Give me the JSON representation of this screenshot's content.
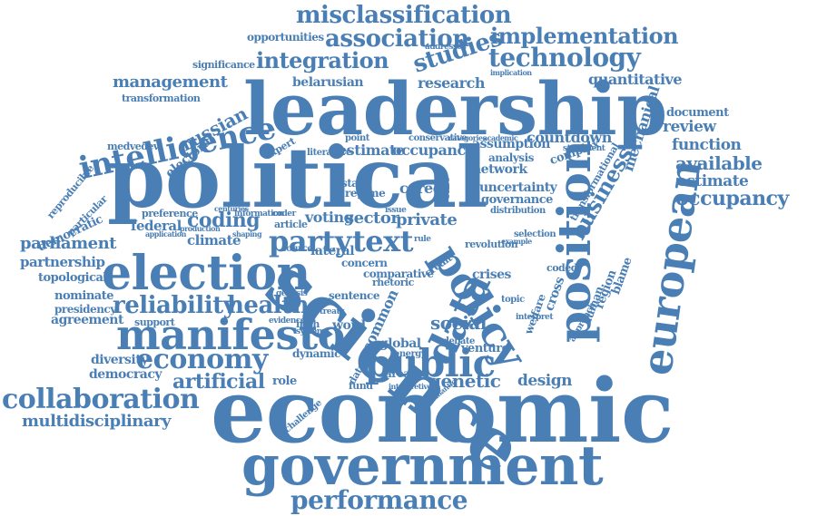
{
  "colors": {
    "word": "#4a7fb5",
    "background": "#ffffff"
  },
  "words": [
    "misclassification",
    "opportunities",
    "association",
    "implementation",
    "integration",
    "technology",
    "studies",
    "significance",
    "management",
    "belarusian",
    "research",
    "quantitative",
    "transformation",
    "leadership",
    "intelligence",
    "russian",
    "medvedev",
    "electoral",
    "expert",
    "political",
    "science",
    "policy",
    "position",
    "european",
    "reproducible",
    "particular",
    "democratic",
    "preference",
    "coding",
    "federal",
    "climate",
    "parliament",
    "partnership",
    "election",
    "party",
    "text",
    "topological",
    "data",
    "reliability",
    "health",
    "nominate",
    "presidency",
    "agreement",
    "manifesto",
    "economy",
    "diversity",
    "democracy",
    "artificial",
    "collaboration",
    "multidisciplinary",
    "economic",
    "government",
    "performance",
    "public",
    "social",
    "genetic",
    "design",
    "review",
    "function",
    "available",
    "document",
    "mechanical",
    "assumption",
    "countdown",
    "estimate",
    "occupancy",
    "business",
    "network",
    "analysis",
    "complex",
    "uncertainty",
    "governance",
    "distribution",
    "transformational",
    "conservative",
    "literature",
    "career",
    "concern",
    "lateral",
    "voting",
    "sector",
    "private",
    "state",
    "regime",
    "word",
    "series",
    "crises",
    "rhetoric",
    "ethnicity",
    "national",
    "response",
    "lancet",
    "blame",
    "human",
    "region",
    "cross",
    "coded",
    "welfare",
    "venture",
    "processes",
    "common",
    "global",
    "area",
    "fund",
    "dynamic",
    "dataset",
    "role",
    "twin",
    "error",
    "scale",
    "study",
    "proc",
    "result",
    "more",
    "crowd",
    "russia",
    "irish",
    "sentence",
    "support",
    "challenge",
    "independent",
    "change",
    "selection",
    "revolution",
    "comparative",
    "credit",
    "elite",
    "time",
    "order",
    "point",
    "addresses",
    "implication",
    "interpretation",
    "statement",
    "interpretive",
    "semantic",
    "debate",
    "energy",
    "topic",
    "interpret",
    "approach",
    "production",
    "application",
    "source",
    "article",
    "information",
    "coder",
    "shaping",
    "centuries",
    "evidence",
    "system",
    "genesis",
    "treaty",
    "issue",
    "rule",
    "example",
    "academic",
    "categories"
  ]
}
